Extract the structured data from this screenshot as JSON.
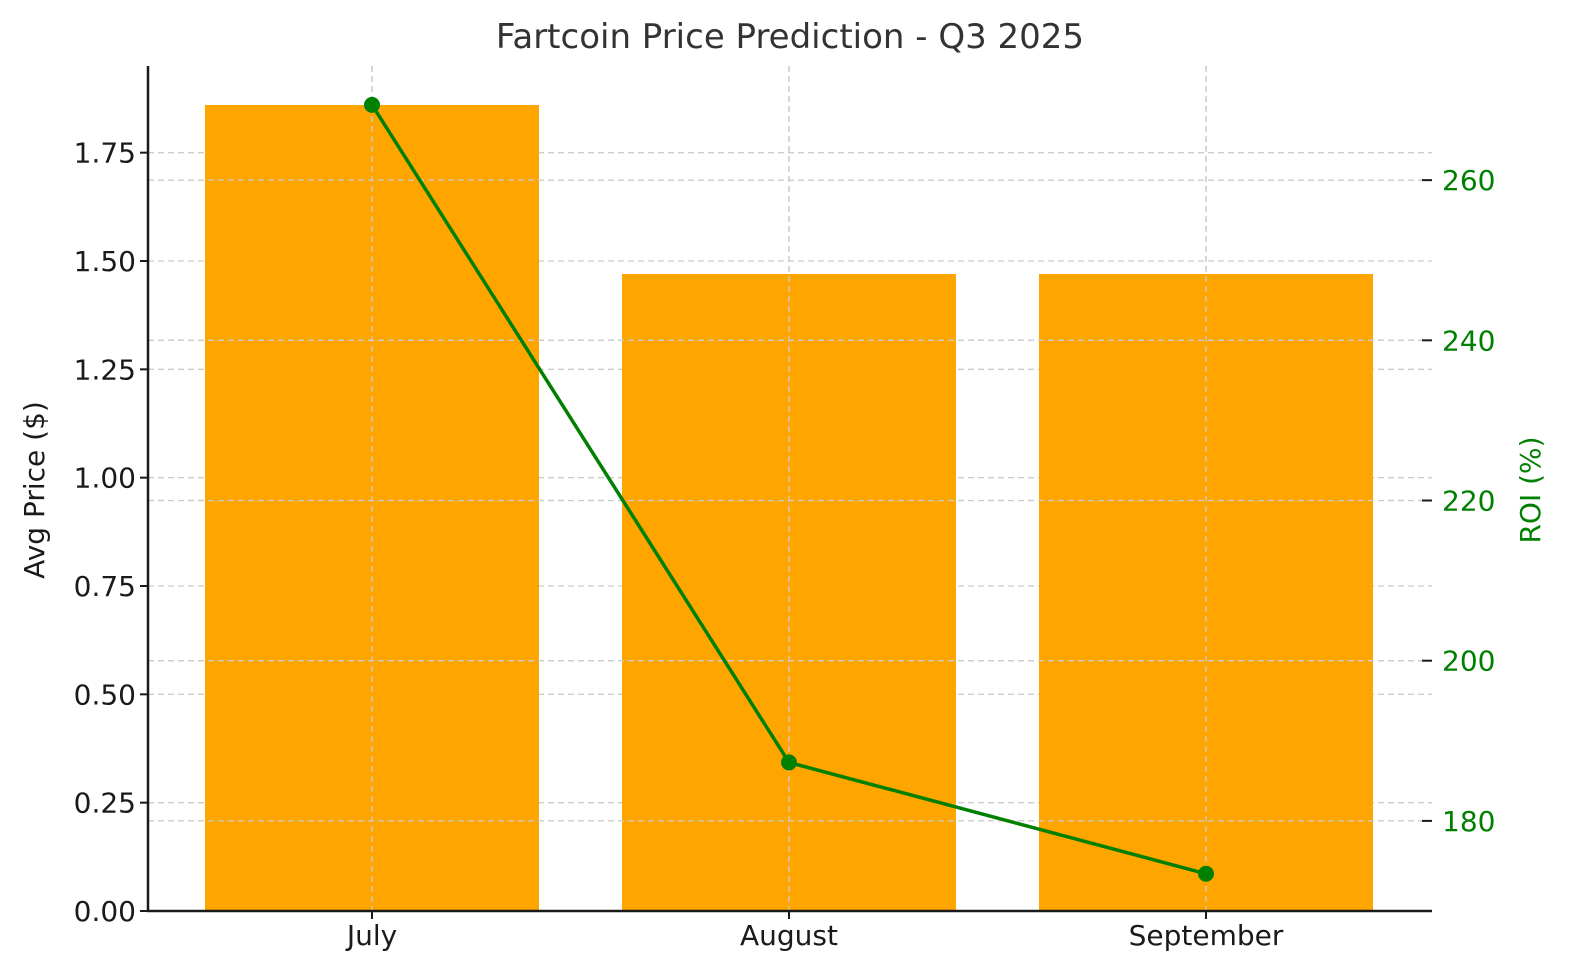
{
  "chart_data": {
    "type": "bar",
    "title": "Fartcoin Price Prediction - Q3 2025",
    "xlabel": "",
    "ylabel": "Avg Price ($)",
    "ylabel_right": "ROI (%)",
    "categories": [
      "July",
      "August",
      "September"
    ],
    "series": [
      {
        "name": "Avg Price ($)",
        "type": "bar",
        "axis": "left",
        "color": "#FFA500",
        "values": [
          1.86,
          1.47,
          1.47
        ]
      },
      {
        "name": "ROI (%)",
        "type": "line",
        "axis": "right",
        "color": "#008000",
        "marker": "circle",
        "values": [
          269.4,
          187.3,
          173.4
        ]
      }
    ],
    "ylim": [
      0,
      1.95
    ],
    "ylim_right": [
      168.75,
      274.25
    ],
    "yticks": [
      "0.00",
      "0.25",
      "0.50",
      "0.75",
      "1.00",
      "1.25",
      "1.50",
      "1.75"
    ],
    "yticks_right": [
      "180",
      "200",
      "220",
      "240",
      "260"
    ],
    "grid": true,
    "legend": null
  }
}
